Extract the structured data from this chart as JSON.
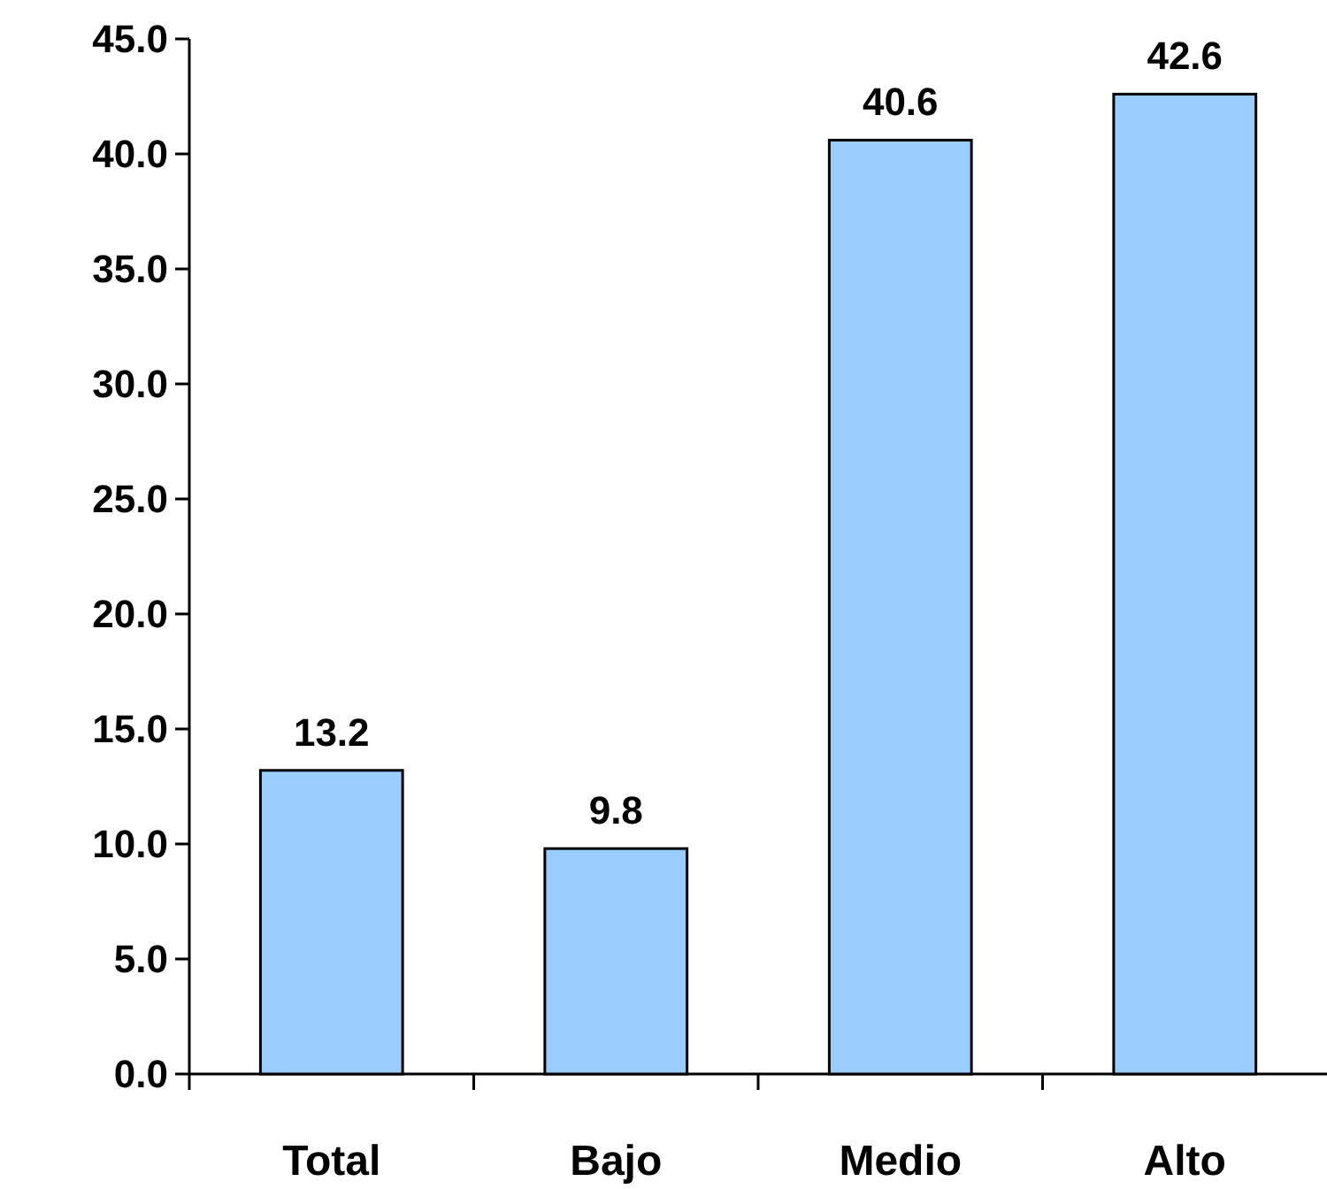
{
  "chart_data": {
    "type": "bar",
    "categories": [
      "Total",
      "Bajo",
      "Medio",
      "Alto"
    ],
    "values": [
      13.2,
      9.8,
      40.6,
      42.6
    ],
    "color": "#99ccff",
    "ylim": [
      0,
      45
    ],
    "yticks": [
      {
        "value": 0,
        "label": "0.0"
      },
      {
        "value": 5,
        "label": "5.0"
      },
      {
        "value": 10,
        "label": "10.0"
      },
      {
        "value": 15,
        "label": "15.0"
      },
      {
        "value": 20,
        "label": "20.0"
      },
      {
        "value": 25,
        "label": "25.0"
      },
      {
        "value": 30,
        "label": "30.0"
      },
      {
        "value": 35,
        "label": "35.0"
      },
      {
        "value": 40,
        "label": "40.0"
      },
      {
        "value": 45,
        "label": "45.0"
      }
    ],
    "data_labels": true,
    "grid": false
  }
}
